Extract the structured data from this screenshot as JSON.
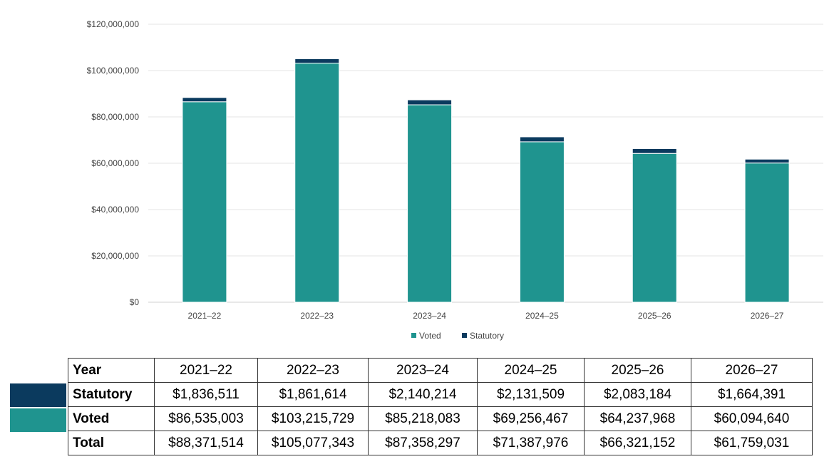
{
  "colors": {
    "voted": "#1f948f",
    "statutory": "#0b3a5e"
  },
  "chart_data": {
    "type": "bar",
    "stacked": true,
    "categories": [
      "2021–22",
      "2022–23",
      "2023–24",
      "2024–25",
      "2025–26",
      "2026–27"
    ],
    "series": [
      {
        "name": "Voted",
        "values": [
          86535003,
          103215729,
          85218083,
          69256467,
          64237968,
          60094640
        ]
      },
      {
        "name": "Statutory",
        "values": [
          1836511,
          1861614,
          2140214,
          2131509,
          2083184,
          1664391
        ]
      }
    ],
    "ylim": [
      0,
      120000000
    ],
    "yticks": [
      "$0",
      "$20,000,000",
      "$40,000,000",
      "$60,000,000",
      "$80,000,000",
      "$100,000,000",
      "$120,000,000"
    ],
    "grid": true,
    "legend": "bottom"
  },
  "table": {
    "header": [
      "Year",
      "2021–22",
      "2022–23",
      "2023–24",
      "2024–25",
      "2025–26",
      "2026–27"
    ],
    "rows": [
      [
        "Statutory",
        "$1,836,511",
        "$1,861,614",
        "$2,140,214",
        "$2,131,509",
        "$2,083,184",
        "$1,664,391"
      ],
      [
        "Voted",
        "$86,535,003",
        "$103,215,729",
        "$85,218,083",
        "$69,256,467",
        "$64,237,968",
        "$60,094,640"
      ],
      [
        "Total",
        "$88,371,514",
        "$105,077,343",
        "$87,358,297",
        "$71,387,976",
        "$66,321,152",
        "$61,759,031"
      ]
    ]
  }
}
